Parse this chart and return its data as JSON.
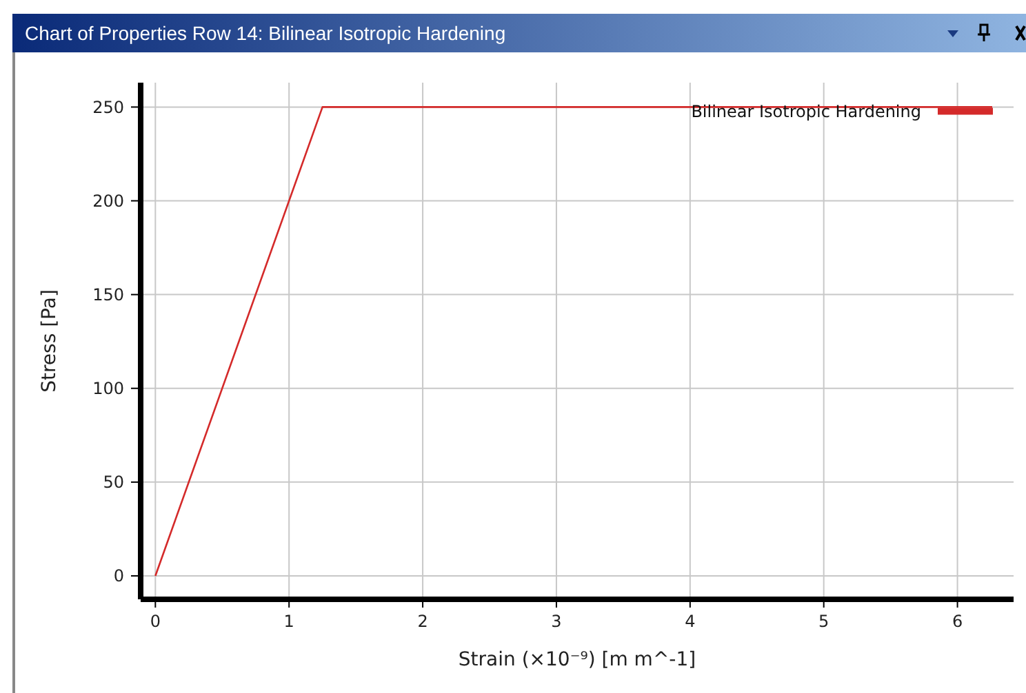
{
  "chart_data": {
    "type": "line",
    "title": "Chart of Properties Row 14: Bilinear Isotropic Hardening",
    "xlabel": "Strain (×10⁻⁹) [m m^-1]",
    "ylabel": "Stress [Pa]",
    "series": [
      {
        "name": "Bilinear Isotropic Hardening",
        "color": "#d42a2a",
        "x": [
          0,
          1.25,
          6.26
        ],
        "values": [
          0,
          250,
          250
        ]
      }
    ],
    "xlim": [
      -0.11,
      6.42
    ],
    "xticks": [
      0,
      1,
      2,
      3,
      4,
      5,
      6
    ],
    "ylim": [
      -12.5,
      263
    ],
    "yticks": [
      0,
      50,
      100,
      150,
      200,
      250
    ],
    "grid": true,
    "legend": "top right",
    "marker": "none",
    "line_style": "solid"
  }
}
